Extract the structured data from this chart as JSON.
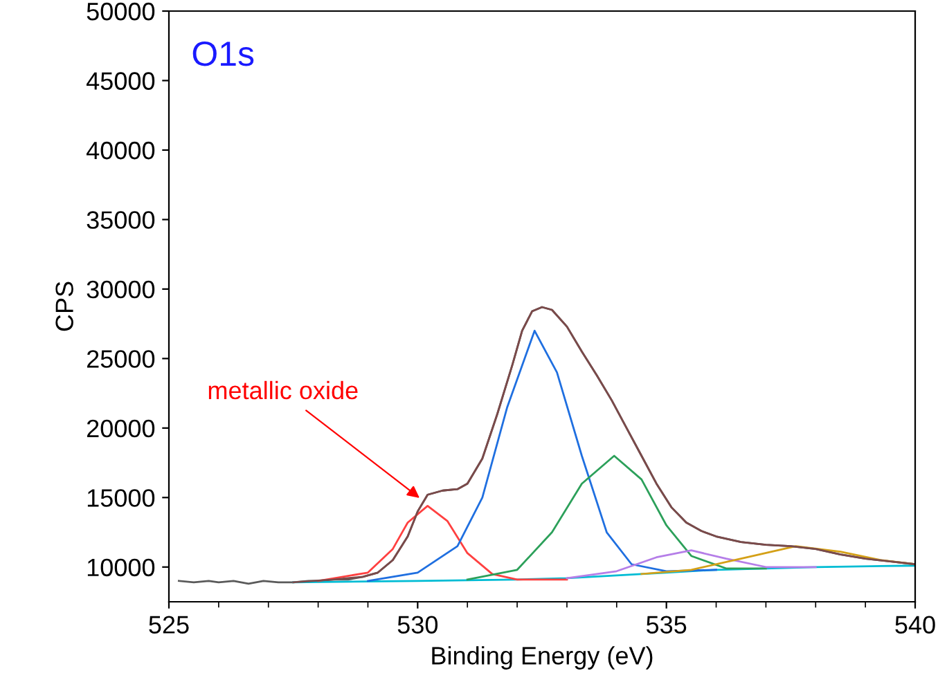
{
  "chart_data": {
    "type": "line",
    "title": "O1s",
    "xlabel": "Binding Energy (eV)",
    "ylabel": "CPS",
    "xlim": [
      525,
      540
    ],
    "xticks": [
      525,
      530,
      535,
      540
    ],
    "ylim": [
      7500,
      50000
    ],
    "yticks": [
      10000,
      15000,
      20000,
      25000,
      30000,
      35000,
      40000,
      45000,
      50000
    ],
    "grid": false,
    "marker": "none",
    "line_style": "solid",
    "annotations": [
      {
        "text": "metallic oxide",
        "x": 530.1,
        "y": 14800
      }
    ],
    "series": [
      {
        "color": "#5a5a5a",
        "x": [
          525.2,
          525.5,
          525.8,
          526.0,
          526.3,
          526.6,
          526.9,
          527.2,
          527.5,
          527.8,
          528.0,
          528.3,
          528.6,
          528.9,
          529.2,
          529.5,
          529.8,
          530.0,
          530.2,
          530.5,
          530.8,
          531.0,
          531.3,
          531.6,
          531.9,
          532.1,
          532.3,
          532.5,
          532.7,
          533.0,
          533.3,
          533.6,
          533.9,
          534.2,
          534.5,
          534.8,
          535.1,
          535.4,
          535.7,
          536.0,
          536.5,
          537.0,
          537.5,
          538.0,
          538.5,
          539.0,
          539.5,
          540.0
        ],
        "values": [
          9000,
          8900,
          9000,
          8900,
          9000,
          8800,
          9000,
          8900,
          8900,
          9000,
          9000,
          9100,
          9100,
          9300,
          9600,
          10500,
          12200,
          14000,
          15200,
          15500,
          15600,
          16000,
          17800,
          21000,
          24500,
          27000,
          28400,
          28700,
          28500,
          27300,
          25500,
          23800,
          22000,
          20000,
          18000,
          16000,
          14300,
          13200,
          12600,
          12200,
          11800,
          11600,
          11500,
          11300,
          10900,
          10600,
          10400,
          10200
        ]
      },
      {
        "color": "#00bcd4",
        "x": [
          527.5,
          530,
          532,
          533,
          534,
          535,
          536,
          537,
          538,
          540
        ],
        "values": [
          8900,
          9000,
          9100,
          9200,
          9400,
          9600,
          9800,
          9900,
          10000,
          10100
        ]
      },
      {
        "color": "#ff4040",
        "x": [
          528,
          529,
          529.5,
          529.8,
          530.2,
          530.6,
          531.0,
          531.5,
          532,
          533
        ],
        "values": [
          9000,
          9600,
          11300,
          13200,
          14400,
          13300,
          11000,
          9500,
          9100,
          9100
        ]
      },
      {
        "color": "#1f6fe0",
        "x": [
          529,
          530,
          530.8,
          531.3,
          531.8,
          532.35,
          532.8,
          533.3,
          533.8,
          534.3,
          535,
          536
        ],
        "values": [
          9000,
          9600,
          11500,
          15000,
          21500,
          27000,
          24000,
          18000,
          12500,
          10200,
          9700,
          9800
        ]
      },
      {
        "color": "#2ca05a",
        "x": [
          531,
          532,
          532.7,
          533.3,
          533.95,
          534.5,
          535.0,
          535.5,
          536.2,
          537
        ],
        "values": [
          9100,
          9800,
          12500,
          16000,
          18000,
          16300,
          13000,
          10800,
          9900,
          9900
        ]
      },
      {
        "color": "#b57ee8",
        "x": [
          533,
          534,
          534.8,
          535.5,
          536.2,
          537,
          538
        ],
        "values": [
          9200,
          9700,
          10700,
          11200,
          10600,
          10000,
          10000
        ]
      },
      {
        "color": "#d4a017",
        "x": [
          534.5,
          535.5,
          536.5,
          537.6,
          538.5,
          539.3,
          540
        ],
        "values": [
          9500,
          9800,
          10600,
          11500,
          11100,
          10500,
          10200
        ]
      },
      {
        "color": "#7b4a4a",
        "x": [
          527.5,
          528.3,
          528.9,
          529.2,
          529.5,
          529.8,
          530.0,
          530.2,
          530.5,
          530.8,
          531.0,
          531.3,
          531.6,
          531.9,
          532.1,
          532.3,
          532.5,
          532.7,
          533.0,
          533.3,
          533.6,
          533.9,
          534.2,
          534.5,
          534.8,
          535.1,
          535.4,
          535.7,
          536.0,
          536.5,
          537.0,
          537.5,
          538.0,
          538.5,
          539.0,
          539.5,
          540.0
        ],
        "values": [
          8900,
          9100,
          9300,
          9600,
          10500,
          12200,
          14000,
          15200,
          15500,
          15600,
          16000,
          17800,
          21000,
          24500,
          27000,
          28400,
          28700,
          28500,
          27300,
          25500,
          23800,
          22000,
          20000,
          18000,
          16000,
          14300,
          13200,
          12600,
          12200,
          11800,
          11600,
          11500,
          11300,
          10900,
          10600,
          10400,
          10200
        ]
      }
    ]
  }
}
